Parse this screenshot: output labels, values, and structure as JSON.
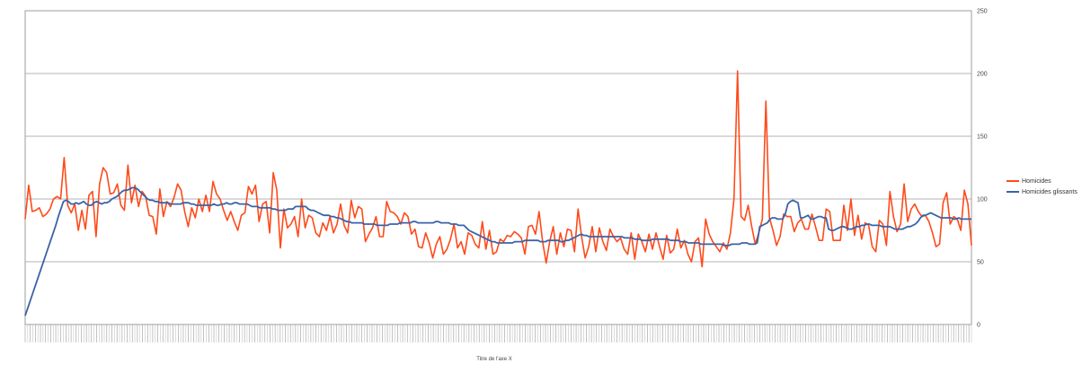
{
  "chart_data": {
    "type": "line",
    "title": "",
    "xlabel": "Titre de l'axe X",
    "ylabel": "",
    "ylim": [
      0,
      250
    ],
    "yticks": [
      0,
      50,
      100,
      150,
      200,
      250
    ],
    "grid": true,
    "legend_position": "right",
    "series": [
      {
        "name": "Homicides",
        "color": "#ff4a1a",
        "values": [
          84,
          111,
          90,
          91,
          93,
          86,
          88,
          92,
          100,
          102,
          100,
          133,
          95,
          89,
          96,
          75,
          91,
          76,
          103,
          106,
          70,
          112,
          125,
          121,
          104,
          105,
          112,
          95,
          91,
          127,
          97,
          111,
          94,
          106,
          102,
          87,
          86,
          72,
          108,
          86,
          98,
          94,
          101,
          112,
          107,
          90,
          78,
          93,
          85,
          100,
          90,
          103,
          90,
          114,
          104,
          100,
          91,
          83,
          90,
          82,
          75,
          87,
          89,
          110,
          104,
          111,
          82,
          96,
          98,
          73,
          121,
          107,
          61,
          92,
          77,
          80,
          86,
          70,
          100,
          77,
          87,
          85,
          73,
          70,
          81,
          75,
          86,
          73,
          80,
          96,
          79,
          73,
          99,
          85,
          94,
          92,
          66,
          72,
          77,
          86,
          70,
          70,
          98,
          90,
          89,
          86,
          80,
          89,
          86,
          72,
          76,
          62,
          61,
          73,
          65,
          53,
          64,
          70,
          56,
          60,
          68,
          80,
          61,
          66,
          56,
          73,
          71,
          64,
          61,
          82,
          60,
          75,
          56,
          58,
          68,
          66,
          71,
          70,
          74,
          72,
          69,
          56,
          78,
          79,
          72,
          90,
          66,
          49,
          66,
          78,
          56,
          73,
          62,
          76,
          75,
          58,
          92,
          70,
          53,
          62,
          78,
          58,
          77,
          66,
          59,
          76,
          70,
          66,
          69,
          60,
          56,
          73,
          52,
          72,
          66,
          58,
          72,
          60,
          73,
          62,
          52,
          71,
          57,
          60,
          76,
          61,
          67,
          56,
          50,
          66,
          69,
          46,
          84,
          72,
          66,
          62,
          58,
          65,
          60,
          73,
          100,
          202,
          86,
          83,
          95,
          78,
          64,
          73,
          84,
          178,
          85,
          75,
          63,
          70,
          88,
          86,
          86,
          74,
          81,
          84,
          76,
          76,
          88,
          78,
          67,
          67,
          92,
          90,
          67,
          67,
          67,
          95,
          75,
          100,
          71,
          87,
          68,
          81,
          79,
          62,
          58,
          83,
          80,
          63,
          106,
          86,
          74,
          80,
          112,
          82,
          92,
          96,
          90,
          86,
          87,
          82,
          73,
          62,
          64,
          97,
          105,
          80,
          86,
          84,
          75,
          107,
          96,
          63
        ]
      },
      {
        "name": "Homicides glissants",
        "color": "#3a63a8",
        "values": [
          7,
          13,
          19,
          25,
          31,
          37,
          43,
          49,
          55,
          61,
          67,
          73,
          79,
          86,
          92,
          98,
          99,
          98,
          96,
          96,
          97,
          96,
          97,
          98,
          96,
          95,
          95,
          97,
          98,
          97,
          96,
          97,
          97,
          98,
          100,
          101,
          102,
          104,
          106,
          107,
          107,
          108,
          109,
          109,
          108,
          106,
          104,
          102,
          100,
          99,
          99,
          98,
          98,
          97,
          97,
          97,
          97,
          96,
          96,
          96,
          96,
          96,
          97,
          97,
          97,
          96,
          96,
          95,
          95,
          95,
          95,
          95,
          95,
          95,
          96,
          95,
          95,
          96,
          96,
          97,
          96,
          96,
          97,
          97,
          96,
          96,
          96,
          96,
          95,
          94,
          94,
          94,
          93,
          93,
          93,
          93,
          93,
          92,
          92,
          91,
          91,
          91,
          91,
          92,
          92,
          92,
          94,
          94,
          94,
          94,
          94,
          92,
          91,
          91,
          90,
          89,
          88,
          87,
          87,
          87,
          86,
          86,
          85,
          85,
          84,
          83,
          82,
          82,
          81,
          81,
          81,
          81,
          81,
          80,
          80,
          80,
          80,
          80,
          79,
          79,
          79,
          79,
          79,
          80,
          80,
          80,
          80,
          81,
          81,
          81,
          81,
          81,
          82,
          82,
          81,
          81,
          81,
          81,
          81,
          81,
          81,
          82,
          82,
          81,
          81,
          81,
          81,
          80,
          80,
          80,
          79,
          79,
          79,
          77,
          75,
          74,
          73,
          72,
          71,
          70,
          69,
          68,
          67,
          66,
          66,
          65,
          65,
          65,
          65,
          65,
          65,
          65,
          66,
          66,
          66,
          66,
          67,
          67,
          67,
          67,
          67,
          67,
          66,
          66,
          66,
          67,
          67,
          67,
          67,
          67,
          66,
          66,
          67,
          67,
          68,
          69,
          70,
          71,
          72,
          71,
          71,
          70,
          70,
          70,
          70,
          70,
          70,
          70,
          70,
          70,
          70,
          70,
          70,
          70,
          70,
          69,
          69,
          69,
          69,
          68,
          68,
          68,
          67,
          67,
          67,
          67,
          68,
          68,
          68,
          68,
          68,
          68,
          68,
          67,
          67,
          67,
          67,
          66,
          66,
          66,
          65,
          65,
          65,
          65,
          65,
          64,
          64,
          64,
          64,
          64,
          64,
          64,
          64,
          64,
          63,
          63,
          63,
          64,
          64,
          64,
          64,
          65,
          65,
          65,
          64,
          64,
          64,
          65,
          78,
          79,
          80,
          81,
          84,
          85,
          85,
          84,
          84,
          84,
          88,
          96,
          98,
          99,
          98,
          97,
          85,
          85,
          86,
          87,
          84,
          84,
          85,
          86,
          86,
          85,
          85,
          76,
          75,
          75,
          76,
          77,
          78,
          78,
          77,
          76,
          76,
          77,
          78,
          78,
          79,
          79,
          80,
          80,
          79,
          79,
          79,
          79,
          78,
          78,
          78,
          78,
          77,
          76,
          76,
          76,
          76,
          77,
          78,
          78,
          79,
          80,
          82,
          85,
          87,
          87,
          88,
          89,
          88,
          87,
          86,
          85,
          85,
          85,
          85,
          85,
          84,
          84,
          85,
          84,
          84,
          84,
          84,
          84
        ]
      }
    ]
  }
}
